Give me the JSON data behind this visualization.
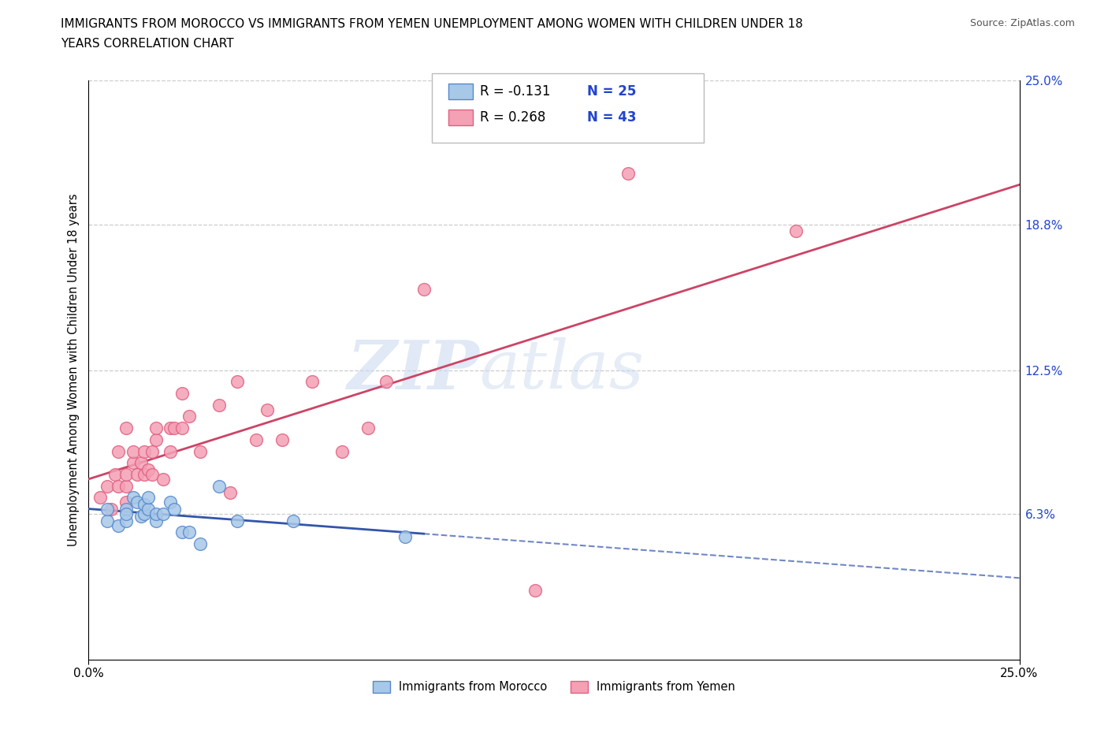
{
  "title_line1": "IMMIGRANTS FROM MOROCCO VS IMMIGRANTS FROM YEMEN UNEMPLOYMENT AMONG WOMEN WITH CHILDREN UNDER 18",
  "title_line2": "YEARS CORRELATION CHART",
  "source": "Source: ZipAtlas.com",
  "ylabel": "Unemployment Among Women with Children Under 18 years",
  "xlim": [
    0.0,
    0.25
  ],
  "ylim": [
    -0.02,
    0.27
  ],
  "plot_ylim": [
    0.0,
    0.25
  ],
  "xtick_positions": [
    0.0,
    0.25
  ],
  "xtick_labels": [
    "0.0%",
    "25.0%"
  ],
  "ytick_vals_right": [
    0.25,
    0.188,
    0.125,
    0.063
  ],
  "ytick_labels_right": [
    "25.0%",
    "18.8%",
    "12.5%",
    "6.3%"
  ],
  "morocco_color": "#a8c8e8",
  "morocco_edge": "#5588cc",
  "yemen_color": "#f4a0b5",
  "yemen_edge": "#e06080",
  "morocco_line_color": "#3355aa",
  "yemen_line_color": "#cc4466",
  "morocco_R": -0.131,
  "morocco_N": 25,
  "yemen_R": 0.268,
  "yemen_N": 43,
  "grid_color": "#cccccc",
  "background_color": "#ffffff",
  "watermark_text": "ZIPatlas",
  "morocco_x": [
    0.005,
    0.005,
    0.008,
    0.01,
    0.01,
    0.01,
    0.012,
    0.013,
    0.014,
    0.015,
    0.015,
    0.016,
    0.016,
    0.018,
    0.018,
    0.02,
    0.022,
    0.023,
    0.025,
    0.027,
    0.03,
    0.035,
    0.04,
    0.055,
    0.085
  ],
  "morocco_y": [
    0.06,
    0.065,
    0.058,
    0.065,
    0.06,
    0.063,
    0.07,
    0.068,
    0.062,
    0.063,
    0.067,
    0.065,
    0.07,
    0.06,
    0.063,
    0.063,
    0.068,
    0.065,
    0.055,
    0.055,
    0.05,
    0.075,
    0.06,
    0.06,
    0.053
  ],
  "yemen_x": [
    0.003,
    0.005,
    0.006,
    0.007,
    0.008,
    0.008,
    0.01,
    0.01,
    0.01,
    0.01,
    0.012,
    0.012,
    0.013,
    0.014,
    0.015,
    0.015,
    0.016,
    0.017,
    0.017,
    0.018,
    0.018,
    0.02,
    0.022,
    0.022,
    0.023,
    0.025,
    0.025,
    0.027,
    0.03,
    0.035,
    0.038,
    0.04,
    0.045,
    0.048,
    0.052,
    0.06,
    0.068,
    0.075,
    0.08,
    0.09,
    0.12,
    0.145,
    0.19
  ],
  "yemen_y": [
    0.07,
    0.075,
    0.065,
    0.08,
    0.09,
    0.075,
    0.068,
    0.075,
    0.08,
    0.1,
    0.085,
    0.09,
    0.08,
    0.085,
    0.08,
    0.09,
    0.082,
    0.08,
    0.09,
    0.095,
    0.1,
    0.078,
    0.1,
    0.09,
    0.1,
    0.115,
    0.1,
    0.105,
    0.09,
    0.11,
    0.072,
    0.12,
    0.095,
    0.108,
    0.095,
    0.12,
    0.09,
    0.1,
    0.12,
    0.16,
    0.03,
    0.21,
    0.185
  ],
  "morocco_trend_solid_end": 0.09,
  "legend_R_color": "#000000",
  "legend_N_color": "#2244cc"
}
